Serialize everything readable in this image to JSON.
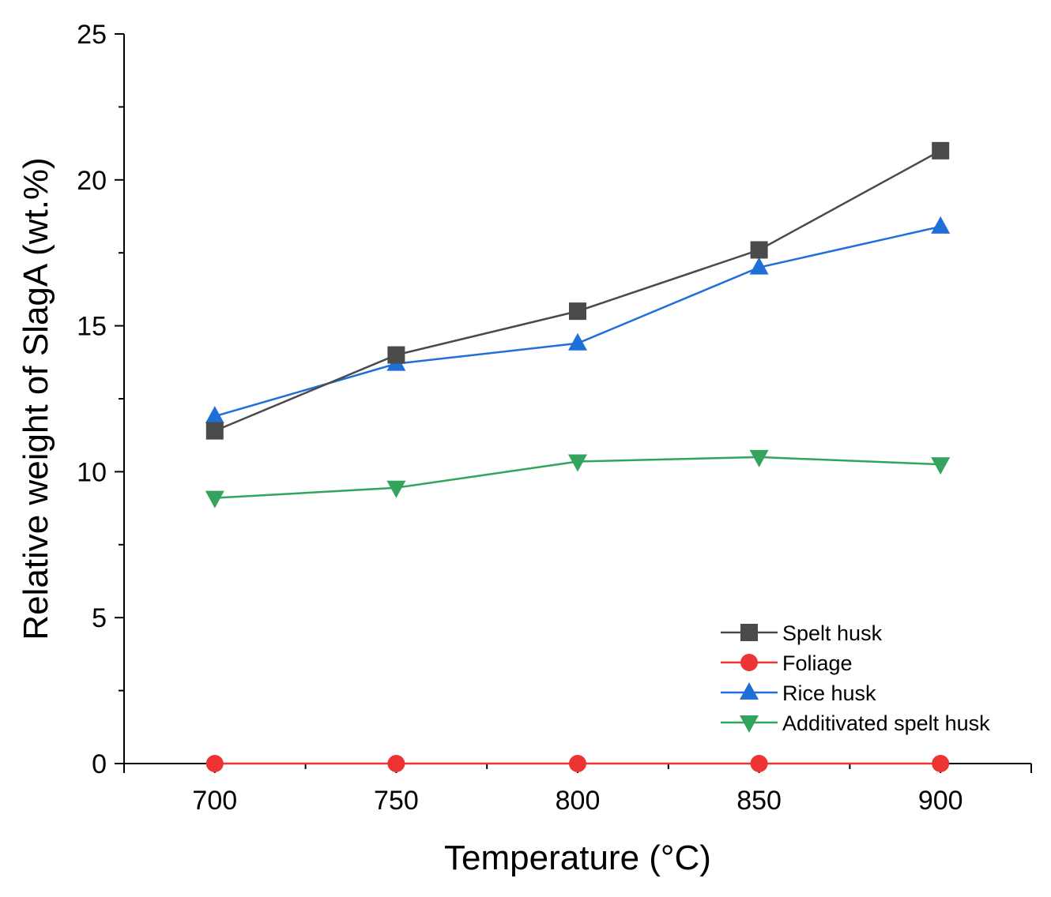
{
  "chart_data": {
    "type": "line",
    "title": "",
    "xlabel": "Temperature (°C)",
    "ylabel": "Relative weight of SlagA  (wt.%)",
    "x": [
      700,
      750,
      800,
      850,
      900
    ],
    "xlim": [
      675,
      925
    ],
    "ylim": [
      0,
      25
    ],
    "xticks": [
      700,
      750,
      800,
      850,
      900
    ],
    "xminor": [
      725,
      775,
      825,
      875
    ],
    "yticks": [
      0,
      5,
      10,
      15,
      20,
      25
    ],
    "yminor": [
      2.5,
      7.5,
      12.5,
      17.5,
      22.5
    ],
    "grid": false,
    "legend_position": "bottom-right",
    "series": [
      {
        "name": "Spelt husk",
        "marker": "square",
        "color": "#4a4a4a",
        "values": [
          11.4,
          14.0,
          15.5,
          17.6,
          21.0
        ]
      },
      {
        "name": "Foliage",
        "marker": "circle",
        "color": "#ee3333",
        "values": [
          0,
          0,
          0,
          0,
          0
        ]
      },
      {
        "name": "Rice husk",
        "marker": "triangle-up",
        "color": "#1f6fd8",
        "values": [
          11.9,
          13.7,
          14.4,
          17.0,
          18.4
        ]
      },
      {
        "name": "Additivated spelt husk",
        "marker": "triangle-down",
        "color": "#33a45e",
        "values": [
          9.1,
          9.45,
          10.35,
          10.5,
          10.25
        ]
      }
    ]
  }
}
